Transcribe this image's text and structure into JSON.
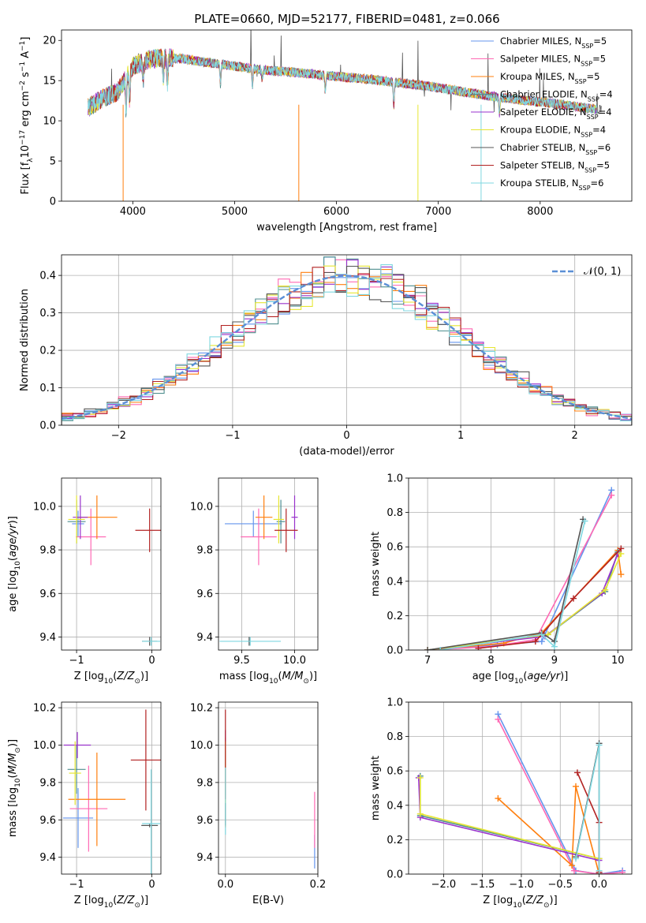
{
  "figure": {
    "title": "PLATE=0660, MJD=52177, FIBERID=0481, z=0.066"
  },
  "colors": [
    "#6495ed",
    "#ff69b4",
    "#ff7f0e",
    "#4f8f8f",
    "#9932cc",
    "#e6e632",
    "#555555",
    "#b22222",
    "#7fd7e0"
  ],
  "chart_data": [
    {
      "id": "spectrum",
      "type": "line",
      "xlabel": "wavelength [Angstrom, rest frame]",
      "ylabel": "Flux [f_λ10^-17 erg cm^-2 s^-1 A^-1]",
      "xlim": [
        3300,
        8900
      ],
      "ylim": [
        0,
        21.3
      ],
      "xticks": [
        4000,
        5000,
        6000,
        7000,
        8000
      ],
      "yticks": [
        0,
        5,
        10,
        15,
        20
      ],
      "grid": false,
      "legend_position": "top-right",
      "legend": [
        {
          "base": "Chabrier MILES, N",
          "sub": "SSP",
          "tail": "=5"
        },
        {
          "base": "Salpeter MILES, N",
          "sub": "SSP",
          "tail": "=5"
        },
        {
          "base": "Kroupa MILES, N",
          "sub": "SSP",
          "tail": "=5"
        },
        {
          "base": "Chabrier ELODIE, N",
          "sub": "SSP",
          "tail": "=4"
        },
        {
          "base": "Salpeter ELODIE, N",
          "sub": "SSP",
          "tail": "=4"
        },
        {
          "base": "Kroupa ELODIE, N",
          "sub": "SSP",
          "tail": "=4"
        },
        {
          "base": "Chabrier STELIB, N",
          "sub": "SSP",
          "tail": "=6"
        },
        {
          "base": "Salpeter STELIB, N",
          "sub": "SSP",
          "tail": "=5"
        },
        {
          "base": "Kroupa STELIB, N",
          "sub": "SSP",
          "tail": "=6"
        }
      ],
      "continuum": {
        "x": [
          3550,
          3700,
          3850,
          4000,
          4150,
          4300,
          4500,
          4700,
          4900,
          5100,
          5300,
          5500,
          5700,
          5900,
          6100,
          6300,
          6500,
          6700,
          6900,
          7100,
          7300,
          7500,
          7800,
          8100,
          8400,
          8600
        ],
        "y": [
          11.5,
          12.8,
          13.6,
          16.8,
          17.6,
          17.9,
          17.7,
          17.3,
          17.0,
          16.6,
          16.3,
          16.1,
          15.9,
          15.6,
          15.4,
          15.2,
          14.9,
          14.6,
          14.3,
          13.9,
          13.5,
          13.1,
          12.6,
          12.2,
          11.7,
          11.3
        ]
      }
    },
    {
      "id": "residuals",
      "type": "bar",
      "xlabel": "(data-model)/error",
      "ylabel": "Normed distribution",
      "xlim": [
        -2.5,
        2.5
      ],
      "ylim": [
        0,
        0.455
      ],
      "xticks": [
        -2,
        -1,
        0,
        1,
        2
      ],
      "yticks": [
        0.0,
        0.1,
        0.2,
        0.3,
        0.4
      ],
      "grid": true,
      "legend_position": "top-right",
      "reference": {
        "name": "𝒩(0, 1)",
        "mean": 0,
        "sigma": 1
      },
      "bins": {
        "start": -2.5,
        "width": 0.1,
        "count": 50
      }
    },
    {
      "id": "age_vs_Z",
      "type": "scatter",
      "xlabel": "Z [log10(Z/Z⊙)]",
      "ylabel": "age  [log10(age/yr)]",
      "xlim": [
        -1.2,
        0.12
      ],
      "ylim": [
        9.34,
        10.13
      ],
      "xticks": [
        -1,
        0
      ],
      "yticks": [
        9.4,
        9.6,
        9.8,
        10.0
      ],
      "grid": true,
      "points": [
        {
          "x": -0.98,
          "xerr": 0.08,
          "y": 9.92,
          "yerr": 0.06
        },
        {
          "x": -0.81,
          "xerr": 0.2,
          "y": 9.86,
          "yerr": 0.13
        },
        {
          "x": -0.73,
          "xerr": 0.27,
          "y": 9.95,
          "yerr": 0.1
        },
        {
          "x": -1.0,
          "xerr": 0.12,
          "y": 9.93,
          "yerr": 0.1
        },
        {
          "x": -0.95,
          "xerr": 0.1,
          "y": 9.95,
          "yerr": 0.1
        },
        {
          "x": -1.0,
          "xerr": 0.11,
          "y": 9.94,
          "yerr": 0.11
        },
        {
          "x": -0.03,
          "xerr": 0.1,
          "y": 9.38,
          "yerr": 0.02
        },
        {
          "x": -0.03,
          "xerr": 0.19,
          "y": 9.89,
          "yerr": 0.1
        },
        {
          "x": -0.01,
          "xerr": 0.12,
          "y": 9.38,
          "yerr": 0.02
        }
      ]
    },
    {
      "id": "age_vs_mass",
      "type": "scatter",
      "xlabel": "mass [log10(M/M⊙)]",
      "ylabel": "",
      "xlim": [
        9.28,
        10.22
      ],
      "ylim": [
        9.34,
        10.13
      ],
      "xticks": [
        9.5,
        10.0
      ],
      "yticks": [
        9.4,
        9.6,
        9.8,
        10.0
      ],
      "grid": true,
      "points": [
        {
          "x": 9.61,
          "xerr": 0.27,
          "y": 9.92,
          "yerr": 0.06
        },
        {
          "x": 9.66,
          "xerr": 0.17,
          "y": 9.86,
          "yerr": 0.13
        },
        {
          "x": 9.71,
          "xerr": 0.08,
          "y": 9.95,
          "yerr": 0.1
        },
        {
          "x": 9.87,
          "xerr": 0.04,
          "y": 9.93,
          "yerr": 0.1
        },
        {
          "x": 10.0,
          "xerr": 0.03,
          "y": 9.95,
          "yerr": 0.1
        },
        {
          "x": 9.85,
          "xerr": 0.05,
          "y": 9.94,
          "yerr": 0.11
        },
        {
          "x": 9.57,
          "xerr": 0.01,
          "y": 9.38,
          "yerr": 0.02
        },
        {
          "x": 9.92,
          "xerr": 0.11,
          "y": 9.89,
          "yerr": 0.1
        },
        {
          "x": 9.58,
          "xerr": 0.29,
          "y": 9.38,
          "yerr": 0.02
        }
      ]
    },
    {
      "id": "weight_vs_age",
      "type": "line",
      "xlabel": "age  [log10(age/yr)]",
      "ylabel": "mass weight",
      "xlim": [
        6.7,
        10.22
      ],
      "ylim": [
        0,
        1.0
      ],
      "xticks": [
        7,
        8,
        9,
        10
      ],
      "yticks": [
        0.0,
        0.2,
        0.4,
        0.6,
        0.8,
        1.0
      ],
      "grid": true,
      "series": [
        {
          "x": [
            7.0,
            8.1,
            8.8,
            9.9
          ],
          "y": [
            0.0,
            0.03,
            0.05,
            0.93
          ]
        },
        {
          "x": [
            7.0,
            8.0,
            8.7,
            9.9
          ],
          "y": [
            0.0,
            0.02,
            0.06,
            0.9
          ]
        },
        {
          "x": [
            7.0,
            8.2,
            8.8,
            10.0,
            10.05
          ],
          "y": [
            0.0,
            0.04,
            0.1,
            0.58,
            0.44
          ]
        },
        {
          "x": [
            7.0,
            8.9,
            9.8,
            10.0
          ],
          "y": [
            0.0,
            0.09,
            0.34,
            0.57
          ]
        },
        {
          "x": [
            7.0,
            8.85,
            9.75,
            10.0
          ],
          "y": [
            0.0,
            0.08,
            0.33,
            0.56
          ]
        },
        {
          "x": [
            7.0,
            8.9,
            9.8,
            10.05
          ],
          "y": [
            0.0,
            0.09,
            0.35,
            0.56
          ]
        },
        {
          "x": [
            7.0,
            8.8,
            9.0,
            9.45
          ],
          "y": [
            0.0,
            0.1,
            0.05,
            0.76
          ]
        },
        {
          "x": [
            7.8,
            8.7,
            9.3,
            10.05
          ],
          "y": [
            0.01,
            0.05,
            0.3,
            0.59
          ]
        },
        {
          "x": [
            7.2,
            8.8,
            9.0,
            9.48
          ],
          "y": [
            0.0,
            0.09,
            0.02,
            0.75
          ]
        }
      ]
    },
    {
      "id": "mass_vs_Z",
      "type": "scatter",
      "xlabel": "Z [log10(Z/Z⊙)]",
      "ylabel": "mass [log10(M/M⊙)]",
      "xlim": [
        -1.2,
        0.12
      ],
      "ylim": [
        9.31,
        10.23
      ],
      "xticks": [
        -1,
        0
      ],
      "yticks": [
        9.4,
        9.6,
        9.8,
        10.0,
        10.2
      ],
      "grid": true,
      "points": [
        {
          "x": -0.98,
          "xerr": 0.2,
          "y": 9.61,
          "yerr": 0.16
        },
        {
          "x": -0.84,
          "xerr": 0.25,
          "y": 9.66,
          "yerr": 0.23
        },
        {
          "x": -0.73,
          "xerr": 0.38,
          "y": 9.71,
          "yerr": 0.25
        },
        {
          "x": -1.0,
          "xerr": 0.12,
          "y": 9.87,
          "yerr": 0.13
        },
        {
          "x": -0.99,
          "xerr": 0.18,
          "y": 10.0,
          "yerr": 0.07
        },
        {
          "x": -1.02,
          "xerr": 0.08,
          "y": 9.85,
          "yerr": 0.17
        },
        {
          "x": -0.03,
          "xerr": 0.11,
          "y": 9.57,
          "yerr": 0.01
        },
        {
          "x": -0.08,
          "xerr": 0.2,
          "y": 9.92,
          "yerr": 0.27
        },
        {
          "x": -0.01,
          "xerr": 0.12,
          "y": 9.58,
          "yerr": 0.29
        }
      ]
    },
    {
      "id": "mass_vs_ebv",
      "type": "scatter",
      "xlabel": "E(B-V)",
      "ylabel": "",
      "xlim": [
        -0.015,
        0.2
      ],
      "ylim": [
        9.31,
        10.23
      ],
      "xticks": [
        0.0,
        0.2
      ],
      "yticks": [
        9.4,
        9.6,
        9.8,
        10.0,
        10.2
      ],
      "grid": true,
      "points": [
        {
          "x": 0.193,
          "xerr": 0,
          "y": 9.43,
          "yerr": 0.09
        },
        {
          "x": 0.193,
          "xerr": 0,
          "y": 9.6,
          "yerr": 0.15
        },
        {
          "x": 0.0,
          "xerr": 0,
          "y": 9.8,
          "yerr": 0.24
        },
        {
          "x": 0.0,
          "xerr": 0,
          "y": 9.85,
          "yerr": 0.12
        },
        {
          "x": 0.0,
          "xerr": 0,
          "y": 10.0,
          "yerr": 0.08
        },
        {
          "x": 0.0,
          "xerr": 0,
          "y": 9.84,
          "yerr": 0.18
        },
        {
          "x": 0.0,
          "xerr": 0,
          "y": 9.63,
          "yerr": 0.06
        },
        {
          "x": 0.0,
          "xerr": 0,
          "y": 9.95,
          "yerr": 0.24
        },
        {
          "x": 0.0,
          "xerr": 0,
          "y": 9.7,
          "yerr": 0.18
        }
      ]
    },
    {
      "id": "weight_vs_Z",
      "type": "line",
      "xlabel": "Z [log10(Z/Z⊙)]",
      "ylabel": "mass weight",
      "xlim": [
        -2.45,
        0.42
      ],
      "ylim": [
        0,
        1.0
      ],
      "xticks": [
        -2.0,
        -1.5,
        -1.0,
        -0.5,
        0.0
      ],
      "yticks": [
        0.0,
        0.2,
        0.4,
        0.6,
        0.8,
        1.0
      ],
      "grid": true,
      "series": [
        {
          "x": [
            -1.3,
            -0.3,
            0.0,
            0.3
          ],
          "y": [
            0.93,
            0.02,
            0.0,
            0.02
          ]
        },
        {
          "x": [
            -1.3,
            -0.32,
            0.0,
            0.3
          ],
          "y": [
            0.9,
            0.02,
            0.0,
            0.01
          ]
        },
        {
          "x": [
            -1.3,
            -0.35,
            -0.3,
            0.0
          ],
          "y": [
            0.44,
            0.05,
            0.51,
            0.0
          ]
        },
        {
          "x": [
            -2.3,
            -2.3,
            0.0
          ],
          "y": [
            0.57,
            0.34,
            0.09
          ]
        },
        {
          "x": [
            -2.32,
            -2.3,
            0.0
          ],
          "y": [
            0.56,
            0.33,
            0.08
          ]
        },
        {
          "x": [
            -2.3,
            -2.3,
            0.0
          ],
          "y": [
            0.56,
            0.35,
            0.09
          ]
        },
        {
          "x": [
            -0.3,
            0.0,
            0.0
          ],
          "y": [
            0.1,
            0.76,
            0.0
          ]
        },
        {
          "x": [
            -0.28,
            0.0,
            0.0
          ],
          "y": [
            0.59,
            0.3,
            0.01
          ]
        },
        {
          "x": [
            -0.3,
            0.0,
            0.0
          ],
          "y": [
            0.09,
            0.75,
            0.02
          ]
        }
      ]
    }
  ]
}
